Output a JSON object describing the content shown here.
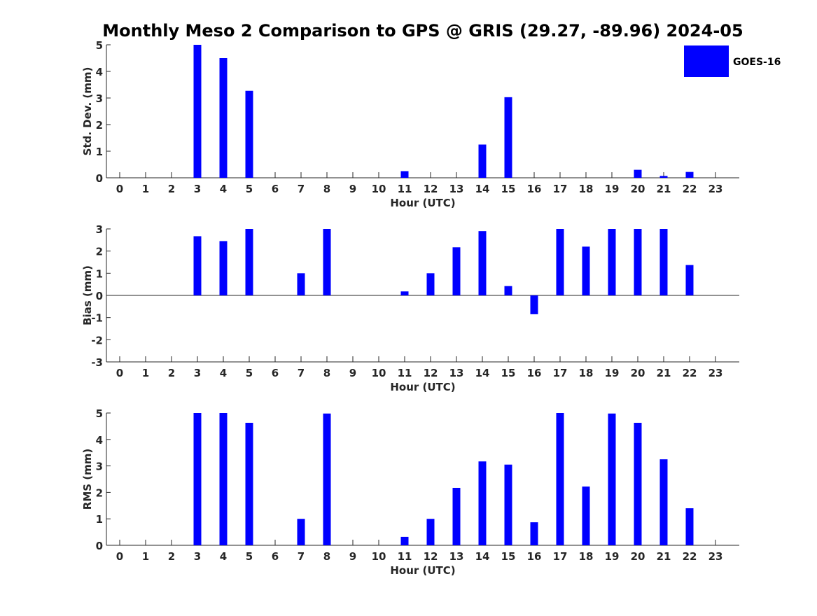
{
  "figure": {
    "title": "Monthly Meso 2 Comparison to GPS @ GRIS (29.27, -89.96) 2024-05",
    "legend": {
      "label": "GOES-16",
      "placement": "top-right"
    },
    "bar_color": "#0000ff"
  },
  "chart_data": [
    {
      "type": "bar",
      "name": "std-dev",
      "xlabel": "Hour (UTC)",
      "ylabel": "Std. Dev. (mm)",
      "ylim": [
        0,
        5
      ],
      "yticks": [
        0,
        1,
        2,
        3,
        4,
        5
      ],
      "categories": [
        "0",
        "1",
        "2",
        "3",
        "4",
        "5",
        "6",
        "7",
        "8",
        "9",
        "10",
        "11",
        "12",
        "13",
        "14",
        "15",
        "16",
        "17",
        "18",
        "19",
        "20",
        "21",
        "22",
        "23"
      ],
      "values": [
        0,
        0,
        0,
        5.0,
        4.5,
        3.27,
        0,
        0,
        0,
        0,
        0,
        0.25,
        0,
        0,
        1.25,
        3.03,
        0,
        0,
        0,
        0,
        0.3,
        0.07,
        0.22,
        0
      ],
      "grid": false
    },
    {
      "type": "bar",
      "name": "bias",
      "xlabel": "Hour (UTC)",
      "ylabel": "Bias (mm)",
      "ylim": [
        -3,
        3
      ],
      "yticks": [
        -3,
        -2,
        -1,
        0,
        1,
        2,
        3
      ],
      "categories": [
        "0",
        "1",
        "2",
        "3",
        "4",
        "5",
        "6",
        "7",
        "8",
        "9",
        "10",
        "11",
        "12",
        "13",
        "14",
        "15",
        "16",
        "17",
        "18",
        "19",
        "20",
        "21",
        "22",
        "23"
      ],
      "values": [
        0,
        0,
        0,
        2.67,
        2.45,
        3.0,
        0,
        1.0,
        3.0,
        0,
        0,
        0.18,
        1.0,
        2.17,
        2.9,
        0.42,
        -0.85,
        3.0,
        2.2,
        3.0,
        3.0,
        3.0,
        1.37,
        0
      ],
      "grid": false
    },
    {
      "type": "bar",
      "name": "rms",
      "xlabel": "Hour (UTC)",
      "ylabel": "RMS (mm)",
      "ylim": [
        0,
        5
      ],
      "yticks": [
        0,
        1,
        2,
        3,
        4,
        5
      ],
      "categories": [
        "0",
        "1",
        "2",
        "3",
        "4",
        "5",
        "6",
        "7",
        "8",
        "9",
        "10",
        "11",
        "12",
        "13",
        "14",
        "15",
        "16",
        "17",
        "18",
        "19",
        "20",
        "21",
        "22",
        "23"
      ],
      "values": [
        0,
        0,
        0,
        5.0,
        5.0,
        4.63,
        0,
        1.0,
        4.98,
        0,
        0,
        0.32,
        1.0,
        2.17,
        3.17,
        3.05,
        0.87,
        5.0,
        2.22,
        4.98,
        4.63,
        3.25,
        1.4,
        0
      ],
      "grid": false
    }
  ]
}
